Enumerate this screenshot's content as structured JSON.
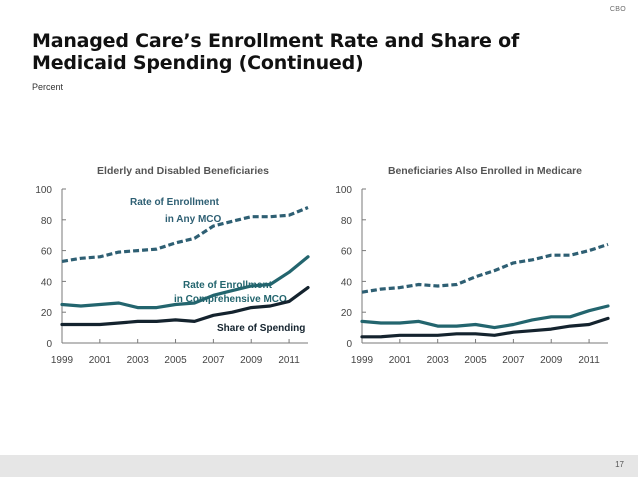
{
  "slide": {
    "org_label": "CBO",
    "title": "Managed Care’s Enrollment Rate and Share of Medicaid Spending (Continued)",
    "unit_label": "Percent",
    "page_number": "17"
  },
  "colors": {
    "any_mco": "#2e5f73",
    "comprehensive_mco": "#23656e",
    "share_of_spending": "#14232e",
    "axis": "#7a7a7a",
    "tick_text": "#444444",
    "panel_title": "#555555"
  },
  "chart_data": [
    {
      "type": "line",
      "title": "Elderly and Disabled Beneficiaries",
      "xlabel": "",
      "ylabel": "Percent",
      "x": [
        1999,
        2000,
        2001,
        2002,
        2003,
        2004,
        2005,
        2006,
        2007,
        2008,
        2009,
        2010,
        2011,
        2012
      ],
      "xticks": [
        "1999",
        "2001",
        "2003",
        "2005",
        "2007",
        "2009",
        "2011"
      ],
      "yticks": [
        "0",
        "20",
        "40",
        "60",
        "80",
        "100"
      ],
      "ylim": [
        0,
        100
      ],
      "grid": false,
      "series": [
        {
          "name": "Rate of Enrollment in Any MCO",
          "label_lines": [
            "Rate of Enrollment",
            "in Any MCO"
          ],
          "style": "dashed",
          "color_key": "any_mco",
          "values": [
            53,
            55,
            56,
            59,
            60,
            61,
            65,
            68,
            76,
            79,
            82,
            82,
            83,
            88
          ]
        },
        {
          "name": "Rate of Enrollment in Comprehensive MCO",
          "label_lines": [
            "Rate of Enrollment",
            "in Comprehensive MCO"
          ],
          "style": "solid",
          "color_key": "comprehensive_mco",
          "values": [
            25,
            24,
            25,
            26,
            23,
            23,
            25,
            26,
            31,
            34,
            37,
            38,
            46,
            56
          ]
        },
        {
          "name": "Share of Spending",
          "label_lines": [
            "Share of Spending"
          ],
          "style": "solid",
          "color_key": "share_of_spending",
          "values": [
            12,
            12,
            12,
            13,
            14,
            14,
            15,
            14,
            18,
            20,
            23,
            24,
            27,
            36
          ]
        }
      ]
    },
    {
      "type": "line",
      "title": "Beneficiaries Also Enrolled in Medicare",
      "xlabel": "",
      "ylabel": "Percent",
      "x": [
        1999,
        2000,
        2001,
        2002,
        2003,
        2004,
        2005,
        2006,
        2007,
        2008,
        2009,
        2010,
        2011,
        2012
      ],
      "xticks": [
        "1999",
        "2001",
        "2003",
        "2005",
        "2007",
        "2009",
        "2011"
      ],
      "yticks": [
        "0",
        "20",
        "40",
        "60",
        "80",
        "100"
      ],
      "ylim": [
        0,
        100
      ],
      "grid": false,
      "series": [
        {
          "name": "Rate of Enrollment in Any MCO",
          "style": "dashed",
          "color_key": "any_mco",
          "values": [
            33,
            35,
            36,
            38,
            37,
            38,
            43,
            47,
            52,
            54,
            57,
            57,
            60,
            64
          ]
        },
        {
          "name": "Rate of Enrollment in Comprehensive MCO",
          "style": "solid",
          "color_key": "comprehensive_mco",
          "values": [
            14,
            13,
            13,
            14,
            11,
            11,
            12,
            10,
            12,
            15,
            17,
            17,
            21,
            24
          ]
        },
        {
          "name": "Share of Spending",
          "style": "solid",
          "color_key": "share_of_spending",
          "values": [
            4,
            4,
            5,
            5,
            5,
            6,
            6,
            5,
            7,
            8,
            9,
            11,
            12,
            16
          ]
        }
      ]
    }
  ]
}
